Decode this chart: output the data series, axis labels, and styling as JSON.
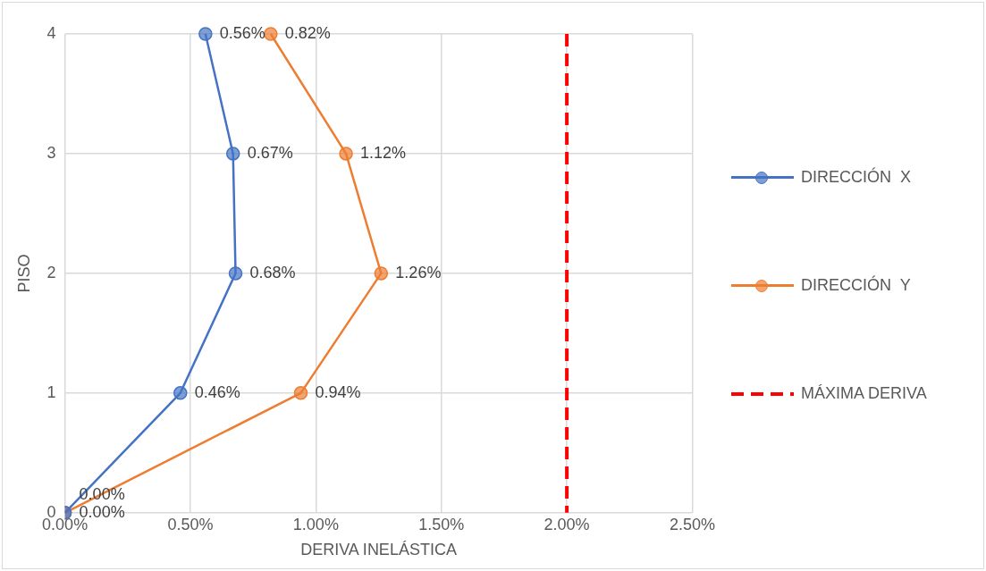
{
  "chart_data": {
    "type": "line",
    "orientation": "horizontal",
    "xlabel": "DERIVA INELÁSTICA",
    "ylabel": "PISO",
    "categories": [
      "4",
      "3",
      "2",
      "1",
      "0"
    ],
    "xlim": [
      0,
      2.5
    ],
    "xticks": [
      {
        "value": 0,
        "label": "0.00%"
      },
      {
        "value": 0.5,
        "label": "0.50%"
      },
      {
        "value": 1,
        "label": "1.00%"
      },
      {
        "value": 1.5,
        "label": "1.50%"
      },
      {
        "value": 2,
        "label": "2.00%"
      },
      {
        "value": 2.5,
        "label": "2.50%"
      }
    ],
    "grid": true,
    "legend": "right",
    "marker": "circle",
    "line_style": "solid",
    "series": [
      {
        "name": "DIRECCIÓN  X",
        "color": "#4472c4",
        "values": [
          0.56,
          0.67,
          0.68,
          0.46,
          0
        ],
        "value_labels": [
          "0.56%",
          "0.67%",
          "0.68%",
          "0.46%",
          "0.00%"
        ]
      },
      {
        "name": "DIRECCIÓN  Y",
        "color": "#ed7d31",
        "values": [
          0.82,
          1.12,
          1.26,
          0.94,
          0
        ],
        "value_labels": [
          "0.82%",
          "1.12%",
          "1.26%",
          "0.94%",
          "0.00%"
        ]
      },
      {
        "name": "MÁXIMA DERIVA",
        "color": "#ff0000",
        "values": [
          2,
          2,
          2,
          2,
          2
        ],
        "marker": "none",
        "line_style": "dashed"
      }
    ]
  }
}
